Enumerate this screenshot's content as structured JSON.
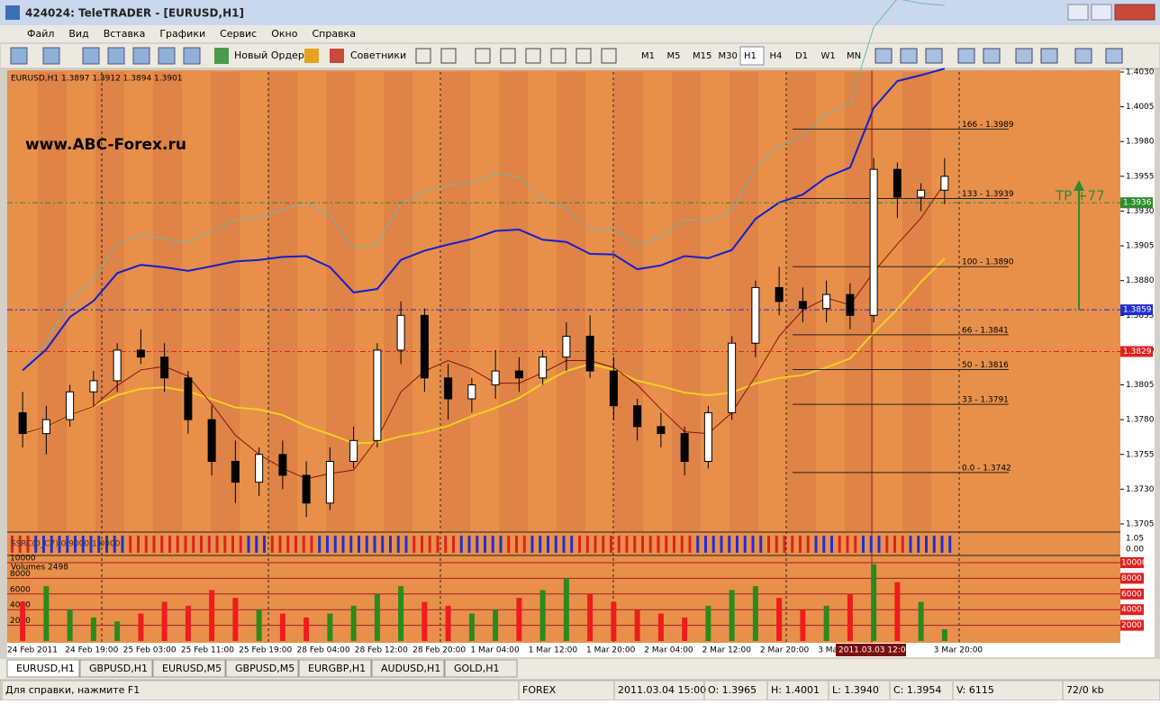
{
  "window": {
    "title": "424024: TeleTRADER - [EURUSD,H1]"
  },
  "menu": [
    "Файл",
    "Вид",
    "Вставка",
    "Графики",
    "Сервис",
    "Окно",
    "Справка"
  ],
  "toolbar": {
    "new_order": "Новый Ордер",
    "advisors": "Советники",
    "timeframes": [
      "M1",
      "M5",
      "M15",
      "M30",
      "H1",
      "H4",
      "D1",
      "W1",
      "MN"
    ]
  },
  "chart": {
    "info": "EURUSD,H1  1.3897 1.3912 1.3894 1.3901",
    "watermark": "www.ABC-Forex.ru",
    "annotation": "TP +77",
    "price_ticks": [
      {
        "value": 1.403,
        "label": "1.4030"
      },
      {
        "value": 1.4005,
        "label": "1.4005"
      },
      {
        "value": 1.398,
        "label": "1.3980"
      },
      {
        "value": 1.3955,
        "label": "1.3955"
      },
      {
        "value": 1.393,
        "label": "1.3930"
      },
      {
        "value": 1.3905,
        "label": "1.3905"
      },
      {
        "value": 1.388,
        "label": "1.3880"
      },
      {
        "value": 1.3855,
        "label": "1.3855"
      },
      {
        "value": 1.383,
        "label": "1.3830"
      },
      {
        "value": 1.3805,
        "label": "1.3805"
      },
      {
        "value": 1.378,
        "label": "1.3780"
      },
      {
        "value": 1.3755,
        "label": "1.3755"
      },
      {
        "value": 1.373,
        "label": "1.3730"
      },
      {
        "value": 1.3705,
        "label": "1.3705"
      }
    ],
    "time_labels": [
      "24 Feb 2011",
      "24 Feb 19:00",
      "25 Feb 03:00",
      "25 Feb 11:00",
      "25 Feb 19:00",
      "28 Feb 04:00",
      "28 Feb 12:00",
      "28 Feb 20:00",
      "1 Mar 04:00",
      "1 Mar 12:00",
      "1 Mar 20:00",
      "2 Mar 04:00",
      "2 Mar 12:00",
      "2 Mar 20:00",
      "3 Mar",
      null,
      "3 Mar 20:00"
    ],
    "highlight_time": "2011.03.03 12:05",
    "candles": [
      [
        1.3785,
        1.38,
        1.376,
        1.377
      ],
      [
        1.377,
        1.379,
        1.3755,
        1.378
      ],
      [
        1.378,
        1.3805,
        1.3775,
        1.38
      ],
      [
        1.38,
        1.3815,
        1.379,
        1.3808
      ],
      [
        1.3808,
        1.3835,
        1.38,
        1.383
      ],
      [
        1.383,
        1.3845,
        1.382,
        1.3825
      ],
      [
        1.3825,
        1.3835,
        1.38,
        1.381
      ],
      [
        1.381,
        1.3815,
        1.377,
        1.378
      ],
      [
        1.378,
        1.379,
        1.374,
        1.375
      ],
      [
        1.375,
        1.3765,
        1.372,
        1.3735
      ],
      [
        1.3735,
        1.376,
        1.3725,
        1.3755
      ],
      [
        1.3755,
        1.3765,
        1.373,
        1.374
      ],
      [
        1.374,
        1.375,
        1.371,
        1.372
      ],
      [
        1.372,
        1.376,
        1.3715,
        1.375
      ],
      [
        1.375,
        1.3775,
        1.3745,
        1.3765
      ],
      [
        1.3765,
        1.3835,
        1.376,
        1.383
      ],
      [
        1.383,
        1.3865,
        1.382,
        1.3855
      ],
      [
        1.3855,
        1.386,
        1.38,
        1.381
      ],
      [
        1.381,
        1.382,
        1.378,
        1.3795
      ],
      [
        1.3795,
        1.381,
        1.3785,
        1.3805
      ],
      [
        1.3805,
        1.383,
        1.3795,
        1.3815
      ],
      [
        1.3815,
        1.3825,
        1.38,
        1.381
      ],
      [
        1.381,
        1.383,
        1.3805,
        1.3825
      ],
      [
        1.3825,
        1.385,
        1.3815,
        1.384
      ],
      [
        1.384,
        1.3855,
        1.381,
        1.3815
      ],
      [
        1.3815,
        1.3825,
        1.378,
        1.379
      ],
      [
        1.379,
        1.3795,
        1.3765,
        1.3775
      ],
      [
        1.3775,
        1.3785,
        1.376,
        1.377
      ],
      [
        1.377,
        1.3775,
        1.374,
        1.375
      ],
      [
        1.375,
        1.379,
        1.3745,
        1.3785
      ],
      [
        1.3785,
        1.384,
        1.378,
        1.3835
      ],
      [
        1.3835,
        1.388,
        1.3825,
        1.3875
      ],
      [
        1.3875,
        1.389,
        1.3855,
        1.3865
      ],
      [
        1.3865,
        1.3875,
        1.385,
        1.386
      ],
      [
        1.386,
        1.388,
        1.385,
        1.387
      ],
      [
        1.387,
        1.3878,
        1.3845,
        1.3855
      ],
      [
        1.3855,
        1.3968,
        1.385,
        1.396
      ],
      [
        1.396,
        1.3965,
        1.3925,
        1.394
      ],
      [
        1.394,
        1.395,
        1.393,
        1.3945
      ],
      [
        1.3945,
        1.3968,
        1.3935,
        1.3955
      ]
    ],
    "fib_levels": [
      {
        "label": "166 - 1.3989",
        "value": 1.3989
      },
      {
        "label": "133 - 1.3939",
        "value": 1.3939
      },
      {
        "label": "100 - 1.3890",
        "value": 1.389
      },
      {
        "label": "66 - 1.3841",
        "value": 1.3841
      },
      {
        "label": "50 - 1.3816",
        "value": 1.3816
      },
      {
        "label": "33 - 1.3791",
        "value": 1.3791
      },
      {
        "label": "0.0 - 1.3742",
        "value": 1.3742
      }
    ],
    "price_markers": [
      {
        "value": 1.3936,
        "label": "1.3936",
        "color": "#2e8b2e"
      },
      {
        "value": 1.3859,
        "label": "1.3859",
        "color": "#1f2fd0"
      },
      {
        "value": 1.3829,
        "label": "1.3829",
        "color": "#e02020"
      }
    ],
    "indicator": {
      "label": "SSRC(0_C7) 0.9000 1.0000",
      "ticks": [
        "1.05",
        "0.00"
      ]
    },
    "volumes": {
      "label": "Volumes 2498",
      "ticks": [
        10000,
        8000,
        6000,
        4000,
        2000
      ],
      "values": [
        5000,
        7000,
        4000,
        3000,
        2500,
        3500,
        5000,
        4500,
        6500,
        5500,
        4000,
        3500,
        3000,
        3500,
        4500,
        6000,
        7000,
        5000,
        4500,
        3500,
        4000,
        5500,
        6500,
        8000,
        6000,
        5000,
        4000,
        3500,
        3000,
        4500,
        6500,
        7000,
        5500,
        4000,
        4500,
        6000,
        9800,
        7500,
        5000,
        1500
      ]
    }
  },
  "tabs": [
    "EURUSD,H1",
    "GBPUSD,H1",
    "EURUSD,M5",
    "GBPUSD,M5",
    "EURGBP,H1",
    "AUDUSD,H1",
    "GOLD,H1"
  ],
  "status": {
    "help": "Для справки, нажмите F1",
    "profile": "FOREX",
    "time": "2011.03.04 15:00",
    "open": "O: 1.3965",
    "high": "H: 1.4001",
    "low": "L: 1.3940",
    "close": "C: 1.3954",
    "volume": "V: 6115",
    "traffic": "72/0 kb"
  }
}
